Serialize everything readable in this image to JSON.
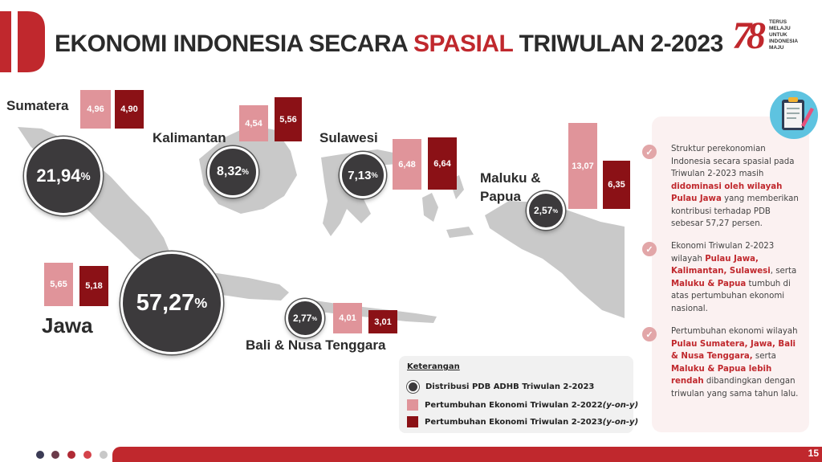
{
  "header": {
    "title_part1": "EKONOMI INDONESIA SECARA ",
    "title_highlight": "SPASIAL",
    "title_part2": " TRIWULAN 2-2023",
    "logo_number": "78",
    "logo_lines": [
      "TERUS",
      "MELAJU",
      "UNTUK",
      "INDONESIA",
      "MAJU"
    ]
  },
  "regions": [
    {
      "name": "Sumatera",
      "share": "21,94",
      "growth_2022": "4,96",
      "growth_2023": "4,90"
    },
    {
      "name": "Kalimantan",
      "share": "8,32",
      "growth_2022": "4,54",
      "growth_2023": "5,56"
    },
    {
      "name": "Sulawesi",
      "share": "7,13",
      "growth_2022": "6,48",
      "growth_2023": "6,64"
    },
    {
      "name": "Maluku &",
      "name_line2": "Papua",
      "share": "2,57",
      "growth_2022": "13,07",
      "growth_2023": "6,35"
    },
    {
      "name": "Jawa",
      "share": "57,27",
      "growth_2022": "5,65",
      "growth_2023": "5,18"
    },
    {
      "name": "Bali & Nusa Tenggara",
      "share": "2,77",
      "growth_2022": "4,01",
      "growth_2023": "3,01"
    }
  ],
  "percent_sign": "%",
  "legend": {
    "title": "Keterangan",
    "items": [
      {
        "label": "Distribusi PDB ADHB Triwulan 2-2023"
      },
      {
        "label": "Pertumbuhan Ekonomi Triwulan 2-2022 ",
        "label_italic": "(y-on-y)"
      },
      {
        "label": "Pertumbuhan Ekonomi Triwulan 2-2023 ",
        "label_italic": "(y-on-y)"
      }
    ]
  },
  "notes": [
    {
      "t1": "Struktur perekonomian Indonesia secara spasial pada Triwulan 2-2023 masih ",
      "h1": "didominasi oleh wilayah Pulau Jawa",
      "t2": " yang memberikan kontribusi terhadap PDB sebesar 57,27 persen."
    },
    {
      "t1": "Ekonomi Triwulan 2-2023 wilayah ",
      "h1": "Pulau Jawa, Kalimantan, Sulawesi",
      "t2": ", serta ",
      "h2": "Maluku & Papua",
      "t3": " tumbuh di atas pertumbuhan ekonomi nasional."
    },
    {
      "t1": "Pertumbuhan ekonomi wilayah ",
      "h1": "Pulau Sumatera, Jawa, Bali & Nusa Tenggara,",
      "t2": " serta ",
      "h2": "Maluku & Papua lebih rendah",
      "t3": " dibandingkan dengan triwulan yang sama tahun lalu."
    }
  ],
  "page_number": "15",
  "colors": {
    "accent": "#c0282d",
    "growth_2022": "#e0949a",
    "growth_2023": "#8b1116",
    "bubble": "#3c3a3c",
    "map": "#c9c9c9"
  }
}
